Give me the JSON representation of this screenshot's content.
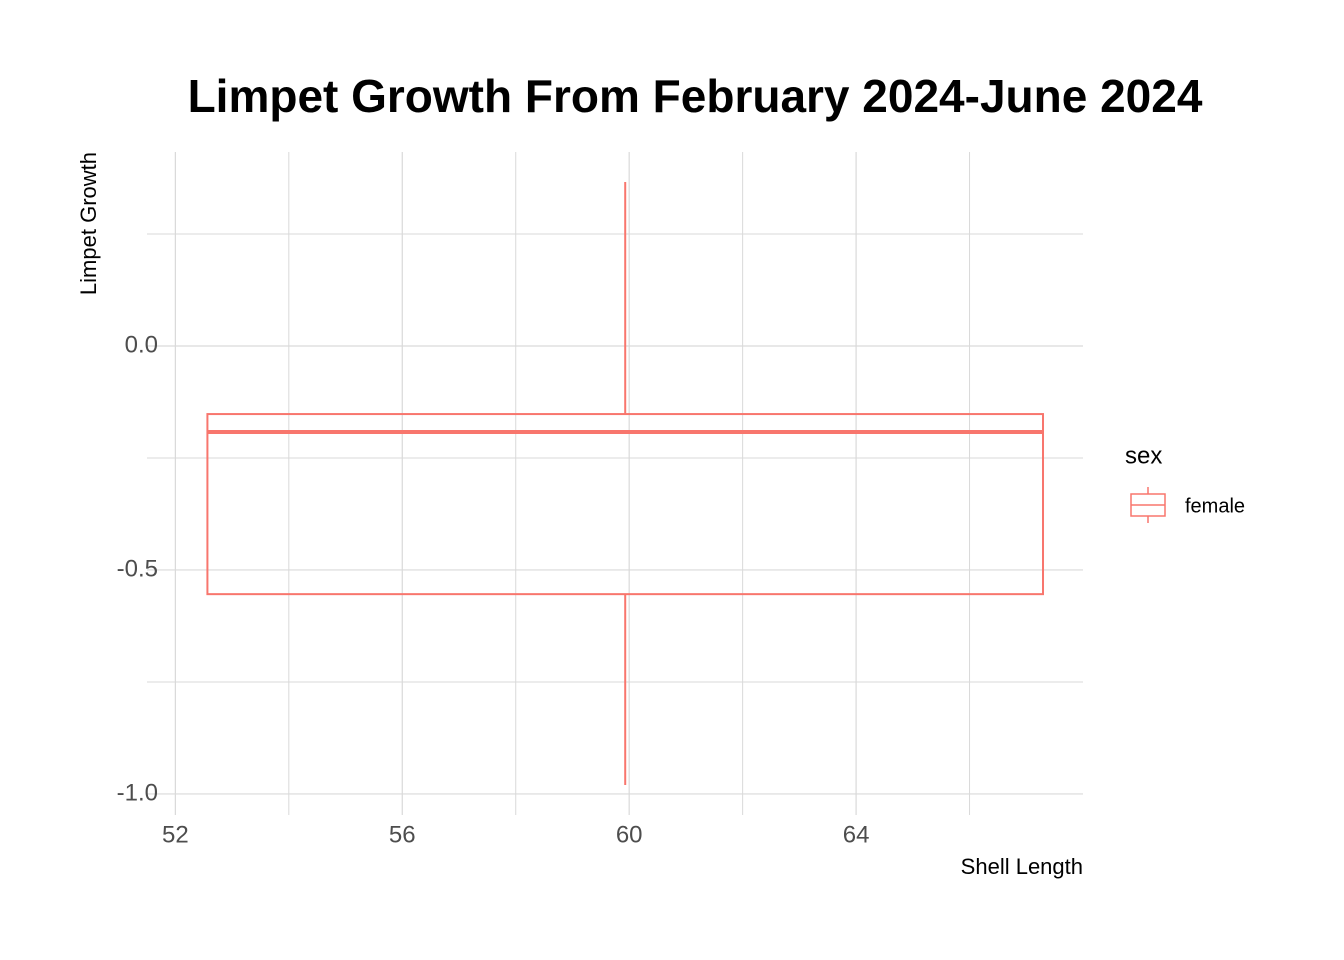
{
  "chart_data": {
    "type": "box",
    "title": "Limpet Growth From February 2024-June 2024",
    "x_label": "Shell Length",
    "y_label": "Limpet Growth",
    "legend_title": "sex",
    "series": [
      {
        "name": "female",
        "color": "#F8766D",
        "x": 59.93,
        "width": 14.73,
        "min": -0.98,
        "q1": -0.554,
        "median": -0.192,
        "q3": -0.152,
        "max": 0.366
      }
    ],
    "xlim": [
      51.5,
      68.0
    ],
    "ylim": [
      -1.047,
      0.433
    ],
    "xticks": [
      52,
      56,
      60,
      64
    ],
    "yticks": [
      {
        "value": 0,
        "label": "0.0"
      },
      {
        "value": -0.5,
        "label": "-0.5"
      },
      {
        "value": -1,
        "label": "-1.0"
      }
    ],
    "xminor": [
      54,
      58,
      62,
      66
    ],
    "yminor": [
      0.25,
      -0.25,
      -0.75
    ],
    "grid": true,
    "legend": "right"
  }
}
